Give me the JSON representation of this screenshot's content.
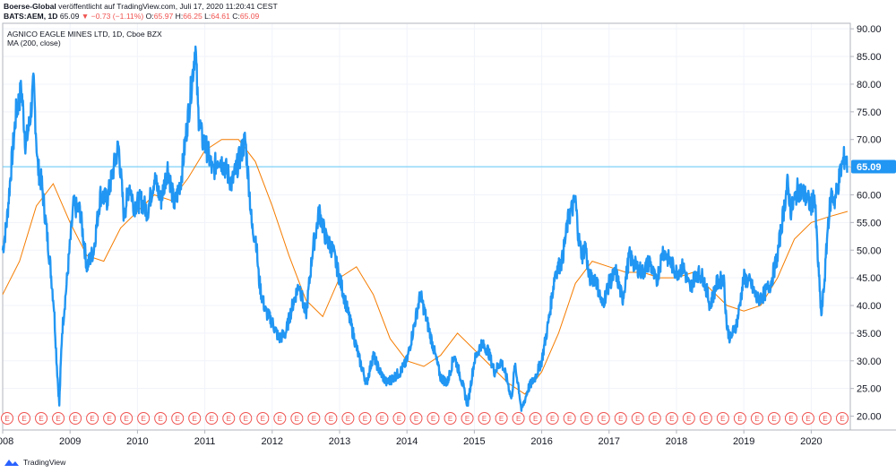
{
  "header": {
    "publisher": "Boerse-Global",
    "publish_text": "veröffentlicht auf TradingView.com, Juli 17, 2020 11:20:41 CEST",
    "symbol": "BATS:AEM, 1D",
    "last": "65.09",
    "change": "▼ −0.73 (−1.11%)",
    "open_label": "O:",
    "open": "65.97",
    "high_label": "H:",
    "high": "66.25",
    "low_label": "L:",
    "low": "64.61",
    "close_label": "C:",
    "close": "65.09"
  },
  "legend": {
    "title": "AGNICO EAGLE MINES LTD, 1D, Cboe BZX",
    "ma_label": "MA (200, close)"
  },
  "footer": {
    "brand": "TradingView"
  },
  "colors": {
    "price": "#2196f3",
    "ma": "#f57c00",
    "last_line": "#4fc3f7",
    "last_bg": "#2196f3",
    "earnings": "#ef5350"
  },
  "chart_data": {
    "type": "line",
    "xlabel": "",
    "ylabel": "",
    "x_range": [
      2008.0,
      2020.58
    ],
    "ylim": [
      17.5,
      91.0
    ],
    "y_ticks": [
      "20.00",
      "25.00",
      "30.00",
      "35.00",
      "40.00",
      "45.00",
      "50.00",
      "55.00",
      "60.00",
      "65.00",
      "70.00",
      "75.00",
      "80.00",
      "85.00",
      "90.00"
    ],
    "x_ticks": [
      "2008",
      "2009",
      "2010",
      "2011",
      "2012",
      "2013",
      "2014",
      "2015",
      "2016",
      "2017",
      "2018",
      "2019",
      "2020"
    ],
    "last_value": 65.09,
    "last_value_label": "65.09",
    "earnings_marker": "E",
    "earnings_count": 50,
    "series": [
      {
        "name": "AEM",
        "x": [
          2008.0,
          2008.06,
          2008.12,
          2008.2,
          2008.28,
          2008.34,
          2008.4,
          2008.46,
          2008.52,
          2008.58,
          2008.64,
          2008.7,
          2008.76,
          2008.8,
          2008.84,
          2008.88,
          2008.95,
          2009.05,
          2009.15,
          2009.25,
          2009.35,
          2009.45,
          2009.55,
          2009.65,
          2009.72,
          2009.8,
          2009.88,
          2009.95,
          2010.05,
          2010.15,
          2010.25,
          2010.35,
          2010.45,
          2010.55,
          2010.65,
          2010.75,
          2010.82,
          2010.86,
          2010.9,
          2010.96,
          2011.04,
          2011.12,
          2011.2,
          2011.3,
          2011.4,
          2011.5,
          2011.6,
          2011.66,
          2011.7,
          2011.76,
          2011.8,
          2011.84,
          2011.9,
          2012.0,
          2012.1,
          2012.2,
          2012.3,
          2012.4,
          2012.5,
          2012.6,
          2012.7,
          2012.8,
          2012.9,
          2013.0,
          2013.1,
          2013.2,
          2013.3,
          2013.4,
          2013.5,
          2013.6,
          2013.7,
          2013.8,
          2013.9,
          2014.0,
          2014.1,
          2014.2,
          2014.3,
          2014.4,
          2014.5,
          2014.6,
          2014.7,
          2014.8,
          2014.9,
          2015.0,
          2015.1,
          2015.2,
          2015.3,
          2015.4,
          2015.5,
          2015.55,
          2015.6,
          2015.65,
          2015.7,
          2015.8,
          2015.9,
          2016.0,
          2016.1,
          2016.2,
          2016.3,
          2016.4,
          2016.5,
          2016.55,
          2016.6,
          2016.65,
          2016.7,
          2016.8,
          2016.9,
          2017.0,
          2017.1,
          2017.2,
          2017.3,
          2017.4,
          2017.5,
          2017.6,
          2017.7,
          2017.8,
          2017.9,
          2018.0,
          2018.1,
          2018.2,
          2018.3,
          2018.4,
          2018.5,
          2018.6,
          2018.7,
          2018.75,
          2018.8,
          2018.9,
          2019.0,
          2019.1,
          2019.2,
          2019.3,
          2019.4,
          2019.5,
          2019.6,
          2019.65,
          2019.7,
          2019.8,
          2019.9,
          2020.0,
          2020.05,
          2020.1,
          2020.15,
          2020.2,
          2020.25,
          2020.3,
          2020.35,
          2020.4,
          2020.45,
          2020.5,
          2020.54
        ],
        "y": [
          50,
          55,
          64,
          75,
          79,
          69,
          73,
          80,
          65,
          62,
          55,
          48,
          40,
          30,
          22,
          35,
          44,
          58,
          57,
          47,
          50,
          60,
          59,
          65,
          69,
          56,
          62,
          58,
          59,
          57,
          63,
          59,
          65,
          58,
          63,
          74,
          82,
          87,
          75,
          70,
          68,
          64,
          67,
          65,
          62,
          66,
          70,
          61,
          54,
          52,
          45,
          42,
          39,
          37,
          34,
          35,
          40,
          44,
          38,
          50,
          57,
          52,
          50,
          45,
          40,
          35,
          30,
          26,
          31,
          28,
          26,
          27,
          28,
          30,
          36,
          42,
          37,
          32,
          27,
          26,
          31,
          27,
          22,
          30,
          33,
          32,
          28,
          30,
          26,
          23,
          29,
          26,
          21,
          25,
          27,
          30,
          37,
          46,
          48,
          56,
          59,
          52,
          49,
          51,
          45,
          45,
          40,
          44,
          46,
          41,
          49,
          47,
          46,
          48,
          44,
          50,
          48,
          46,
          47,
          43,
          46,
          45,
          40,
          44,
          45,
          36,
          34,
          37,
          45,
          44,
          41,
          42,
          44,
          49,
          58,
          62,
          57,
          61,
          60,
          58,
          60,
          48,
          38,
          45,
          55,
          60,
          59,
          62,
          65,
          67,
          65.09
        ]
      },
      {
        "name": "MA (200, close)",
        "x": [
          2008.0,
          2008.25,
          2008.5,
          2008.75,
          2009.0,
          2009.25,
          2009.5,
          2009.75,
          2010.0,
          2010.25,
          2010.5,
          2010.75,
          2011.0,
          2011.25,
          2011.5,
          2011.75,
          2012.0,
          2012.25,
          2012.5,
          2012.75,
          2013.0,
          2013.25,
          2013.5,
          2013.75,
          2014.0,
          2014.25,
          2014.5,
          2014.75,
          2015.0,
          2015.25,
          2015.5,
          2015.75,
          2016.0,
          2016.25,
          2016.5,
          2016.75,
          2017.0,
          2017.25,
          2017.5,
          2017.75,
          2018.0,
          2018.25,
          2018.5,
          2018.75,
          2019.0,
          2019.25,
          2019.5,
          2019.75,
          2020.0,
          2020.25,
          2020.54
        ],
        "y": [
          42,
          48,
          58,
          62,
          55,
          49,
          48,
          54,
          57,
          60,
          59,
          63,
          68,
          70,
          70,
          66,
          58,
          49,
          41,
          38,
          45,
          47,
          42,
          34,
          30,
          29,
          31,
          35,
          32,
          29,
          26,
          24,
          28,
          35,
          44,
          48,
          47,
          46,
          46,
          45,
          45,
          46,
          43,
          40,
          39,
          40,
          45,
          52,
          55,
          56,
          57
        ]
      }
    ]
  }
}
